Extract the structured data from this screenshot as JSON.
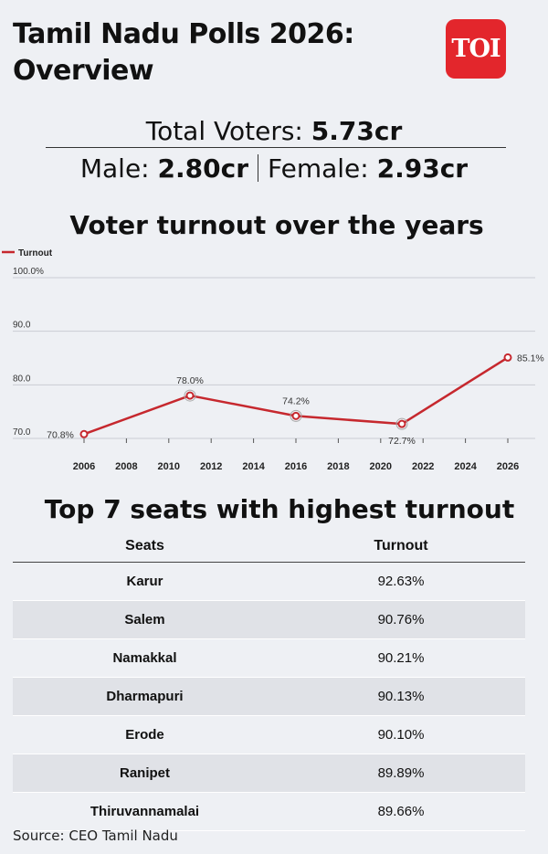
{
  "header": {
    "title": "Tamil Nadu Polls 2026: Overview",
    "logo_text": "TOI"
  },
  "voters": {
    "total_label": "Total Voters:",
    "total_value": "5.73cr",
    "male_label": "Male:",
    "male_value": "2.80cr",
    "female_label": "Female:",
    "female_value": "2.93cr"
  },
  "chart_data": {
    "type": "line",
    "title": "Voter turnout over the years",
    "legend": "Turnout",
    "legend_placement": "top-left",
    "x": [
      2006,
      2011,
      2016,
      2021,
      2026
    ],
    "values": [
      70.8,
      78.0,
      74.2,
      72.7,
      85.1
    ],
    "point_labels": [
      "70.8%",
      "78.0%",
      "74.2%",
      "72.7%",
      "85.1%"
    ],
    "x_ticks": [
      "2006",
      "2008",
      "2010",
      "2012",
      "2014",
      "2016",
      "2018",
      "2020",
      "2022",
      "2024",
      "2026"
    ],
    "y_ticks": [
      "100.0%",
      "90.0",
      "80.0",
      "70.0"
    ],
    "ylim": [
      70,
      100
    ],
    "xlim": [
      2006,
      2026
    ],
    "grid": true,
    "color": "#c6282e"
  },
  "table": {
    "title": "Top 7 seats with highest turnout",
    "headers": [
      "Seats",
      "Turnout"
    ],
    "rows": [
      [
        "Karur",
        "92.63%"
      ],
      [
        "Salem",
        "90.76%"
      ],
      [
        "Namakkal",
        "90.21%"
      ],
      [
        "Dharmapuri",
        "90.13%"
      ],
      [
        "Erode",
        "90.10%"
      ],
      [
        "Ranipet",
        "89.89%"
      ],
      [
        "Thiruvannamalai",
        "89.66%"
      ]
    ]
  },
  "source": "Source: CEO Tamil Nadu"
}
